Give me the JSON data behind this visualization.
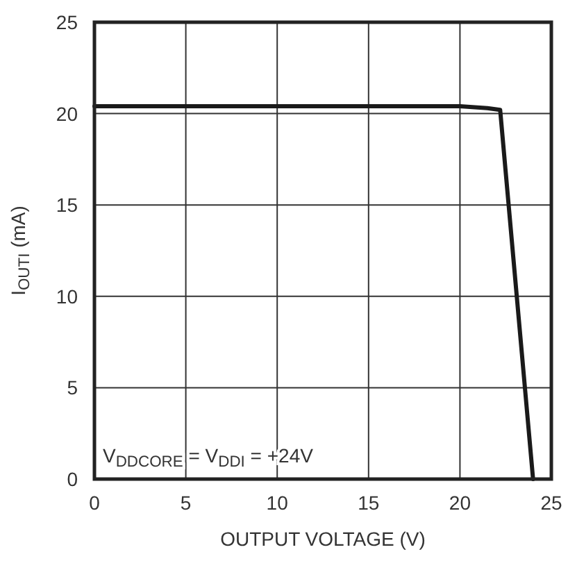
{
  "chart_data": {
    "type": "line",
    "xlabel": "OUTPUT VOLTAGE (V)",
    "ylabel": "I$_{OUTI}$ (mA)",
    "x": [
      0,
      10,
      15,
      20,
      21.5,
      22.2,
      24
    ],
    "series": [
      {
        "color": "#1a1a1a",
        "values": [
          20.4,
          20.4,
          20.4,
          20.4,
          20.3,
          20.2,
          0
        ]
      }
    ],
    "xlim": [
      0,
      25
    ],
    "ylim": [
      0,
      25
    ],
    "xticks": [
      0,
      5,
      10,
      15,
      20,
      25
    ],
    "yticks": [
      0,
      5,
      10,
      15,
      20,
      25
    ],
    "grid": true,
    "marker": "none",
    "line_style": "solid",
    "annotations": [
      "V$_{DDCORE}$ = V$_{DDI}$ = +24V"
    ]
  }
}
